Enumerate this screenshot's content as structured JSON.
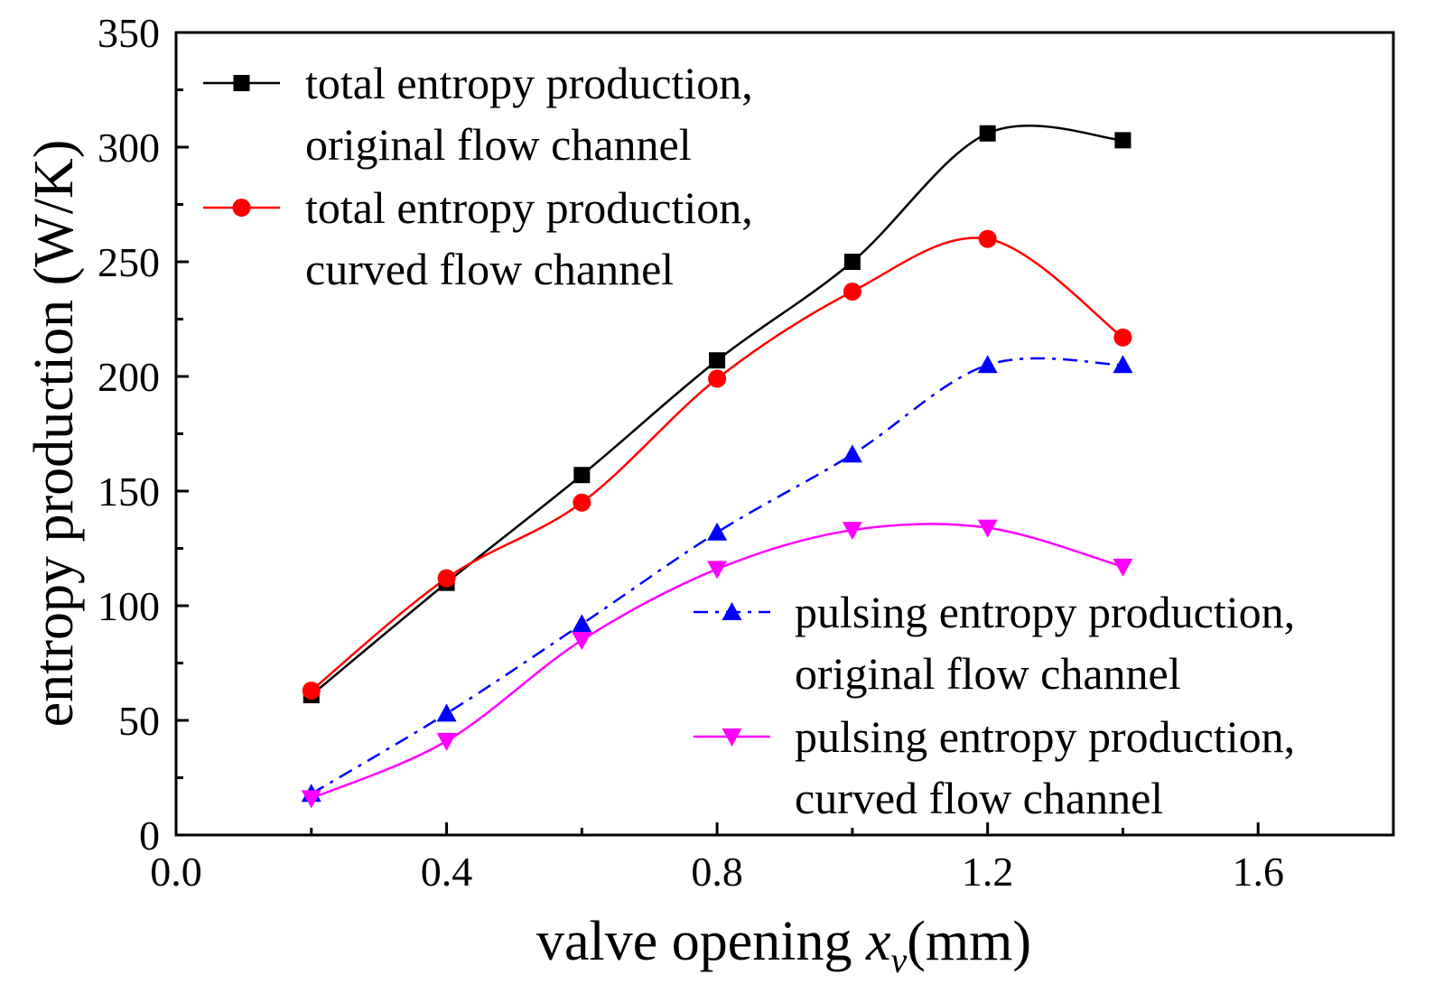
{
  "chart_data": {
    "type": "line",
    "title": "",
    "xlabel": {
      "prefix": "valve opening ",
      "var": "x",
      "sub": "v",
      "suffix": "(mm)"
    },
    "ylabel": "entropy production (W/K)",
    "xlim": [
      0.0,
      1.8
    ],
    "ylim": [
      0,
      350
    ],
    "xticks": [
      "0.0",
      "0.4",
      "0.8",
      "1.2",
      "1.6"
    ],
    "xtick_values": [
      0.0,
      0.4,
      0.8,
      1.2,
      1.6
    ],
    "yticks": [
      "0",
      "50",
      "100",
      "150",
      "200",
      "250",
      "300",
      "350"
    ],
    "ytick_values": [
      0,
      50,
      100,
      150,
      200,
      250,
      300,
      350
    ],
    "x": [
      0.2,
      0.4,
      0.6,
      0.8,
      1.0,
      1.2,
      1.4
    ],
    "series": [
      {
        "name": "total entropy production, original flow channel",
        "legend_lines": [
          "total entropy production,",
          "original flow channel"
        ],
        "marker": "square",
        "color": "#000000",
        "dash": "solid",
        "values": [
          61,
          110,
          157,
          207,
          250,
          306,
          303
        ]
      },
      {
        "name": "total entropy production, curved flow channel",
        "legend_lines": [
          "total entropy production,",
          "curved flow channel"
        ],
        "marker": "circle",
        "color": "#ff0000",
        "dash": "solid",
        "values": [
          63,
          112,
          145,
          199,
          237,
          260,
          217
        ]
      },
      {
        "name": "pulsing entropy production, original flow channel",
        "legend_lines": [
          "pulsing entropy production,",
          "original flow channel"
        ],
        "marker": "triangle-up",
        "color": "#0000ff",
        "dash": "dashdot",
        "values": [
          18,
          53,
          92,
          132,
          166,
          205,
          205
        ]
      },
      {
        "name": "pulsing entropy production, curved flow channel",
        "legend_lines": [
          "pulsing entropy production,",
          "curved flow channel"
        ],
        "marker": "triangle-down",
        "color": "#ff00ff",
        "dash": "solid",
        "values": [
          16,
          41,
          85,
          116,
          133,
          134,
          117
        ]
      }
    ]
  }
}
